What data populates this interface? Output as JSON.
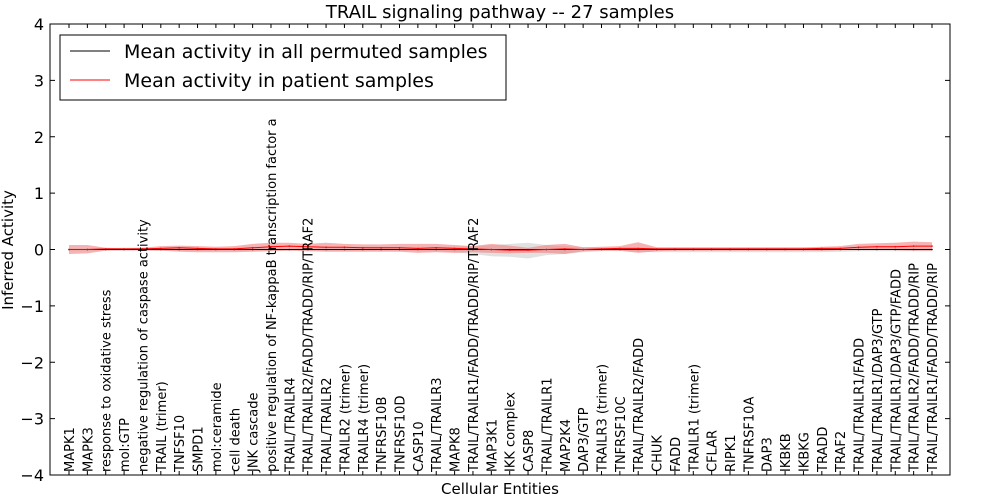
{
  "chart_data": {
    "type": "line",
    "title": "TRAIL signaling pathway -- 27 samples",
    "xlabel": "Cellular Entities",
    "ylabel": "Inferred Activity",
    "ylim": [
      -4,
      4
    ],
    "yticks": [
      4,
      3,
      2,
      1,
      0,
      -1,
      -2,
      -3,
      -4
    ],
    "ytick_labels": [
      "4",
      "3",
      "2",
      "1",
      "0",
      "−1",
      "−2",
      "−3",
      "−4"
    ],
    "grid": false,
    "legend_position": "top-left",
    "categories": [
      "MAPK1",
      "MAPK3",
      "response to oxidative stress",
      "mol:GTP",
      "negative regulation of caspase activity",
      "TRAIL (trimer)",
      "TNFSF10",
      "SMPD1",
      "mol:ceramide",
      "cell death",
      "JNK cascade",
      "positive regulation of NF-kappaB transcription factor a",
      "TRAIL/TRAILR4",
      "TRAIL/TRAILR2/FADD/TRADD/RIP/TRAF2",
      "TRAIL/TRAILR2",
      "TRAILR2 (trimer)",
      "TRAILR4 (trimer)",
      "TNFRSF10B",
      "TNFRSF10D",
      "CASP10",
      "TRAIL/TRAILR3",
      "MAPK8",
      "TRAIL/TRAILR1/FADD/TRADD/RIP/TRAF2",
      "MAP3K1",
      "IKK complex",
      "CASP8",
      "TRAIL/TRAILR1",
      "MAP2K4",
      "DAP3/GTP",
      "TRAILR3 (trimer)",
      "TNFRSF10C",
      "TRAIL/TRAILR2/FADD",
      "CHUK",
      "FADD",
      "TRAILR1 (trimer)",
      "CFLAR",
      "RIPK1",
      "TNFRSF10A",
      "DAP3",
      "IKBKB",
      "IKBKG",
      "TRADD",
      "TRAF2",
      "TRAIL/TRAILR1/FADD",
      "TRAIL/TRAILR1/DAP3/GTP",
      "TRAIL/TRAILR1/DAP3/GTP/FADD",
      "TRAIL/TRAILR2/FADD/TRADD/RIP",
      "TRAIL/TRAILR1/FADD/TRADD/RIP"
    ],
    "series": [
      {
        "name": "Mean activity in all permuted samples",
        "color": "#000000",
        "band_color": "#c8c8c8",
        "values": [
          0,
          0,
          0,
          0,
          0,
          0,
          0,
          0,
          0,
          0,
          0,
          0,
          0,
          0,
          0,
          0,
          0,
          0,
          0,
          0,
          0,
          0,
          0,
          0,
          0,
          0,
          0,
          0,
          0,
          0,
          0,
          0,
          0,
          0,
          0,
          0,
          0,
          0,
          0,
          0,
          0,
          0,
          0,
          0,
          0,
          0,
          0,
          0
        ],
        "lower": [
          -0.02,
          -0.02,
          -0.02,
          -0.03,
          -0.03,
          -0.02,
          -0.02,
          -0.02,
          -0.02,
          -0.02,
          -0.02,
          -0.02,
          -0.02,
          -0.02,
          -0.02,
          -0.02,
          -0.02,
          -0.02,
          -0.02,
          -0.03,
          -0.03,
          -0.05,
          -0.08,
          -0.12,
          -0.13,
          -0.16,
          -0.1,
          -0.08,
          -0.05,
          -0.03,
          -0.03,
          -0.04,
          -0.05,
          -0.05,
          -0.05,
          -0.05,
          -0.05,
          -0.05,
          -0.05,
          -0.05,
          -0.05,
          -0.05,
          -0.04,
          -0.03,
          -0.03,
          -0.03,
          -0.03,
          -0.03
        ],
        "upper": [
          0.02,
          0.02,
          0.02,
          0.03,
          0.03,
          0.02,
          0.02,
          0.02,
          0.02,
          0.02,
          0.02,
          0.02,
          0.02,
          0.02,
          0.02,
          0.02,
          0.02,
          0.02,
          0.02,
          0.03,
          0.03,
          0.05,
          0.06,
          0.08,
          0.1,
          0.12,
          0.08,
          0.06,
          0.04,
          0.03,
          0.03,
          0.03,
          0.03,
          0.03,
          0.03,
          0.03,
          0.03,
          0.03,
          0.03,
          0.03,
          0.03,
          0.03,
          0.03,
          0.03,
          0.03,
          0.03,
          0.03,
          0.03
        ]
      },
      {
        "name": "Mean activity in patient samples",
        "color": "#ff0000",
        "band_color": "#f08080",
        "values": [
          0.0,
          0.0,
          0.01,
          0.01,
          0.01,
          0.02,
          0.03,
          0.02,
          0.01,
          0.01,
          0.03,
          0.05,
          0.06,
          0.05,
          0.04,
          0.04,
          0.03,
          0.03,
          0.03,
          0.02,
          0.03,
          0.02,
          0.01,
          0.0,
          -0.01,
          -0.01,
          0.0,
          0.01,
          0.0,
          0.01,
          0.02,
          0.02,
          0.01,
          0.01,
          0.01,
          0.01,
          0.01,
          0.01,
          0.01,
          0.01,
          0.01,
          0.02,
          0.02,
          0.04,
          0.05,
          0.05,
          0.06,
          0.06
        ],
        "lower": [
          -0.08,
          -0.07,
          -0.02,
          -0.01,
          -0.01,
          -0.02,
          -0.04,
          -0.05,
          -0.05,
          -0.05,
          -0.04,
          -0.03,
          -0.02,
          -0.03,
          -0.04,
          -0.04,
          -0.04,
          -0.04,
          -0.04,
          -0.06,
          -0.05,
          -0.06,
          -0.05,
          -0.06,
          -0.07,
          -0.06,
          -0.06,
          -0.08,
          -0.03,
          -0.02,
          -0.02,
          -0.06,
          -0.03,
          -0.02,
          -0.02,
          -0.02,
          -0.02,
          -0.02,
          -0.02,
          -0.02,
          -0.02,
          -0.02,
          -0.01,
          -0.01,
          0.0,
          -0.01,
          -0.02,
          -0.02
        ],
        "upper": [
          0.08,
          0.08,
          0.03,
          0.02,
          0.03,
          0.06,
          0.07,
          0.06,
          0.05,
          0.06,
          0.1,
          0.12,
          0.12,
          0.1,
          0.12,
          0.1,
          0.09,
          0.09,
          0.1,
          0.1,
          0.1,
          0.08,
          0.06,
          0.1,
          0.07,
          0.03,
          0.08,
          0.1,
          0.04,
          0.05,
          0.06,
          0.13,
          0.04,
          0.04,
          0.04,
          0.04,
          0.04,
          0.04,
          0.04,
          0.04,
          0.04,
          0.05,
          0.06,
          0.1,
          0.11,
          0.12,
          0.14,
          0.13
        ]
      }
    ]
  }
}
